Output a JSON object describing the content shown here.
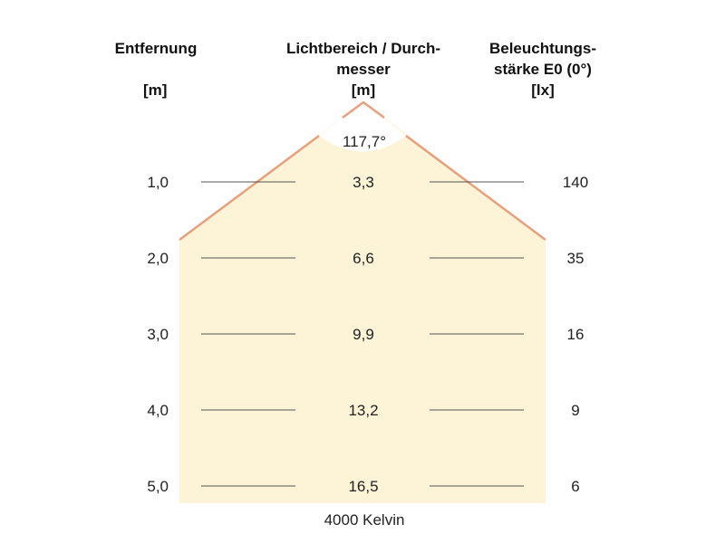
{
  "headers": {
    "distance": {
      "line1": "Entfernung",
      "unit": "[m]"
    },
    "diameter": {
      "line1": "Lichtbereich / Durch-",
      "line2": "messer",
      "unit": "[m]"
    },
    "illuminance": {
      "line1": "Beleuchtungs-",
      "line2": "stärke E0 (0°)",
      "unit": "[lx]"
    }
  },
  "beam_angle": "117,7°",
  "rows": [
    {
      "distance": "1,0",
      "diameter": "3,3",
      "illuminance": "140"
    },
    {
      "distance": "2,0",
      "diameter": "6,6",
      "illuminance": "35"
    },
    {
      "distance": "3,0",
      "diameter": "9,9",
      "illuminance": "16"
    },
    {
      "distance": "4,0",
      "diameter": "13,2",
      "illuminance": "9"
    },
    {
      "distance": "5,0",
      "diameter": "16,5",
      "illuminance": "6"
    }
  ],
  "color_temperature": "4000 Kelvin",
  "colors": {
    "beam_fill": "#fdf3d6",
    "beam_edge": "#e8a07c",
    "row_line": "#555555"
  }
}
